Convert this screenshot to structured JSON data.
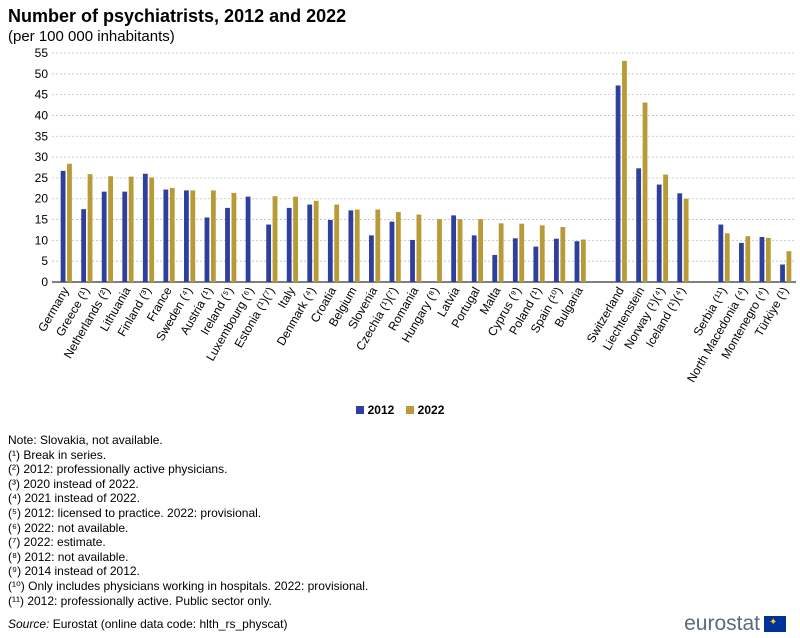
{
  "title": "Number of psychiatrists, 2012 and 2022",
  "subtitle": "(per 100 000 inhabitants)",
  "colors": {
    "series_2012": "#2f3f9e",
    "series_2022": "#b89a36",
    "grid": "#bfbfbf"
  },
  "chart_data": {
    "type": "bar",
    "ylim": [
      0,
      55
    ],
    "yticks": [
      0,
      5,
      10,
      15,
      20,
      25,
      30,
      35,
      40,
      45,
      50,
      55
    ],
    "grid": true,
    "legend_position": "bottom",
    "categories": [
      "Germany",
      "Greece (¹)",
      "Netherlands (²)",
      "Lithuania",
      "Finland (³)",
      "France",
      "Sweden (⁴)",
      "Austria (¹)",
      "Ireland (⁵)",
      "Luxembourg (⁶)",
      "Estonia (¹)(⁷)",
      "Italy",
      "Denmark (⁴)",
      "Croatia",
      "Belgium",
      "Slovenia",
      "Czechia (¹)(⁷)",
      "Romania",
      "Hungary (⁸)",
      "Latvia",
      "Portugal",
      "Malta",
      "Cyprus (⁹)",
      "Poland (¹)",
      "Spain (¹⁰)",
      "Bulgaria",
      "",
      "Switzerland",
      "Liechtenstein",
      "Norway (¹)(⁴)",
      "Iceland (¹)(⁴)",
      "",
      "Serbia (¹¹)",
      "North Macedonia (⁴)",
      "Montenegro (⁴)",
      "Türkiye (¹)"
    ],
    "series": [
      {
        "name": "2012",
        "values": [
          26.7,
          17.5,
          21.7,
          21.7,
          26.0,
          22.2,
          22.0,
          15.5,
          17.8,
          20.5,
          13.8,
          17.8,
          18.6,
          14.9,
          17.2,
          11.2,
          14.5,
          10.1,
          null,
          16.0,
          11.2,
          6.5,
          10.5,
          8.5,
          10.4,
          9.8,
          null,
          47.2,
          27.3,
          23.4,
          21.3,
          null,
          13.8,
          9.4,
          10.8,
          4.2
        ]
      },
      {
        "name": "2022",
        "values": [
          28.4,
          25.9,
          25.4,
          25.3,
          25.1,
          22.6,
          22.0,
          22.0,
          21.4,
          null,
          20.6,
          20.5,
          19.5,
          18.6,
          17.4,
          17.4,
          16.8,
          16.2,
          15.1,
          15.1,
          15.1,
          14.1,
          14.0,
          13.6,
          13.2,
          10.2,
          null,
          53.1,
          43.1,
          25.8,
          20.0,
          null,
          11.7,
          11.0,
          10.6,
          7.4
        ]
      }
    ]
  },
  "notes": [
    "Note: Slovakia, not available.",
    "(¹) Break in series.",
    "(²) 2012: professionally active physicians.",
    "(³) 2020 instead of 2022.",
    "(⁴) 2021 instead of 2022.",
    "(⁵) 2012: licensed to practice. 2022: provisional.",
    "(⁶) 2022: not available.",
    "(⁷) 2022: estimate.",
    "(⁸) 2012: not available.",
    "(⁹) 2014 instead of 2012.",
    "(¹⁰) Only includes physicians working in hospitals. 2022: provisional.",
    "(¹¹) 2012: professionally active. Public sector only."
  ],
  "source": {
    "label": "Source:",
    "text": "Eurostat (online data code: hlth_rs_physcat)"
  },
  "logo": {
    "text": "eurostat",
    "icon": "eu-flag-icon"
  }
}
